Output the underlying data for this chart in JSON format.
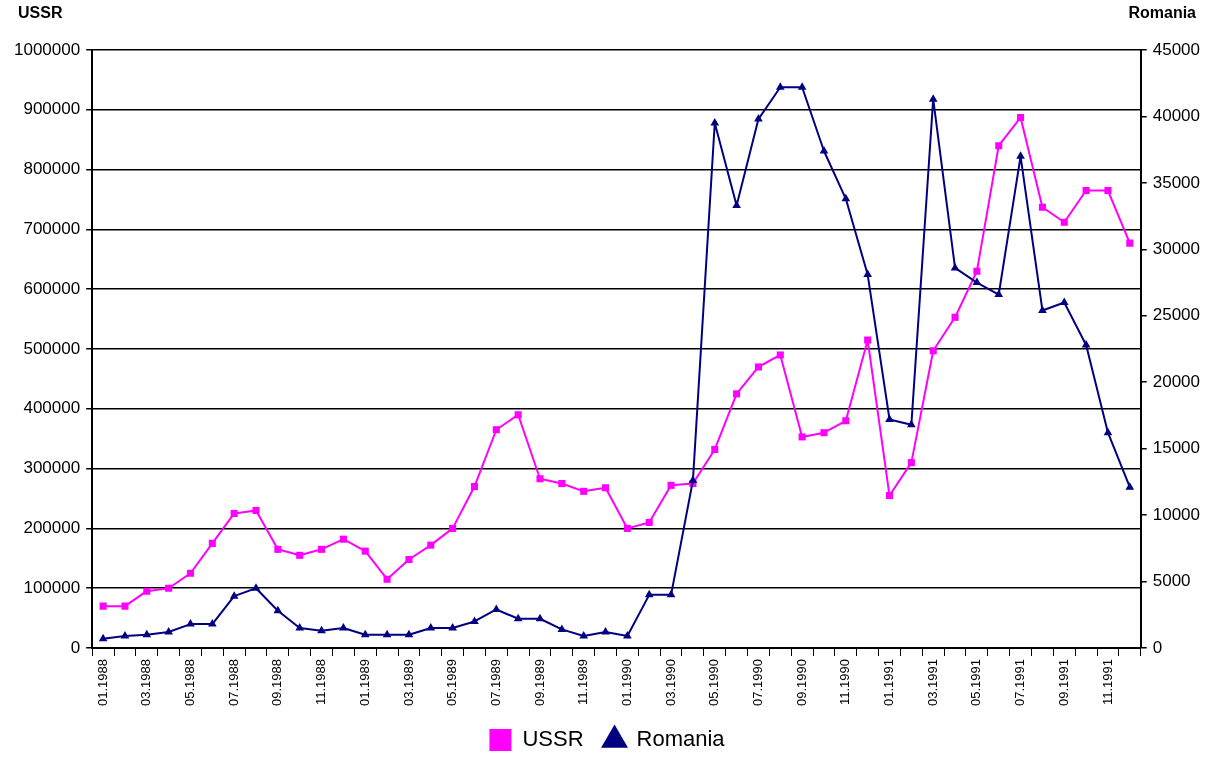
{
  "chart_data": {
    "type": "line",
    "ylabel": "USSR",
    "y2label": "Romania",
    "categories": [
      "01.1988",
      null,
      "03.1988",
      null,
      "05.1988",
      null,
      "07.1988",
      null,
      "09.1988",
      null,
      "11.1988",
      null,
      "01.1989",
      null,
      "03.1989",
      null,
      "05.1989",
      null,
      "07.1989",
      null,
      "09.1989",
      null,
      "11.1989",
      null,
      "01.1990",
      null,
      "03.1990",
      null,
      "05.1990",
      null,
      "07.1990",
      null,
      "09.1990",
      null,
      "11.1990",
      null,
      "01.1991",
      null,
      "03.1991",
      null,
      "05.1991",
      null,
      "07.1991",
      null,
      "09.1991",
      null,
      "11.1991",
      null
    ],
    "series": [
      {
        "name": "USSR",
        "color": "#ff00ff",
        "marker": "square",
        "values": [
          70000,
          70000,
          95000,
          100000,
          125000,
          175000,
          225000,
          230000,
          165000,
          155000,
          165000,
          182000,
          162000,
          115000,
          148000,
          172000,
          200000,
          270000,
          365000,
          390000,
          283000,
          275000,
          262000,
          268000,
          200000,
          210000,
          272000,
          275000,
          332000,
          425000,
          470000,
          490000,
          353000,
          360000,
          380000,
          515000,
          255000,
          310000,
          497000,
          553000,
          630000,
          840000,
          887000,
          737000,
          712000,
          765000,
          765000,
          677000
        ]
      },
      {
        "name": "Romania",
        "color": "#000080",
        "marker": "triangle",
        "axis": "y2",
        "values": [
          700,
          900,
          1000,
          1200,
          1800,
          1800,
          3900,
          4500,
          2800,
          1500,
          1300,
          1500,
          1000,
          1000,
          1000,
          1500,
          1500,
          2000,
          2900,
          2200,
          2200,
          1400,
          900,
          1200,
          900,
          4000,
          4000,
          12600,
          39500,
          33300,
          39800,
          42200,
          42200,
          37400,
          33800,
          28100,
          17200,
          16800,
          41300,
          28600,
          27500,
          26600,
          37000,
          25400,
          26000,
          22800,
          16200,
          12100
        ]
      }
    ],
    "ylim": [
      0,
      1000000
    ],
    "yticks": [
      0,
      100000,
      200000,
      300000,
      400000,
      500000,
      600000,
      700000,
      800000,
      900000,
      1000000
    ],
    "y2lim": [
      0,
      45000
    ],
    "y2ticks": [
      0,
      5000,
      10000,
      15000,
      20000,
      25000,
      30000,
      35000,
      40000,
      45000
    ],
    "grid": "y",
    "legend": "bottom",
    "line_style": "solid"
  }
}
